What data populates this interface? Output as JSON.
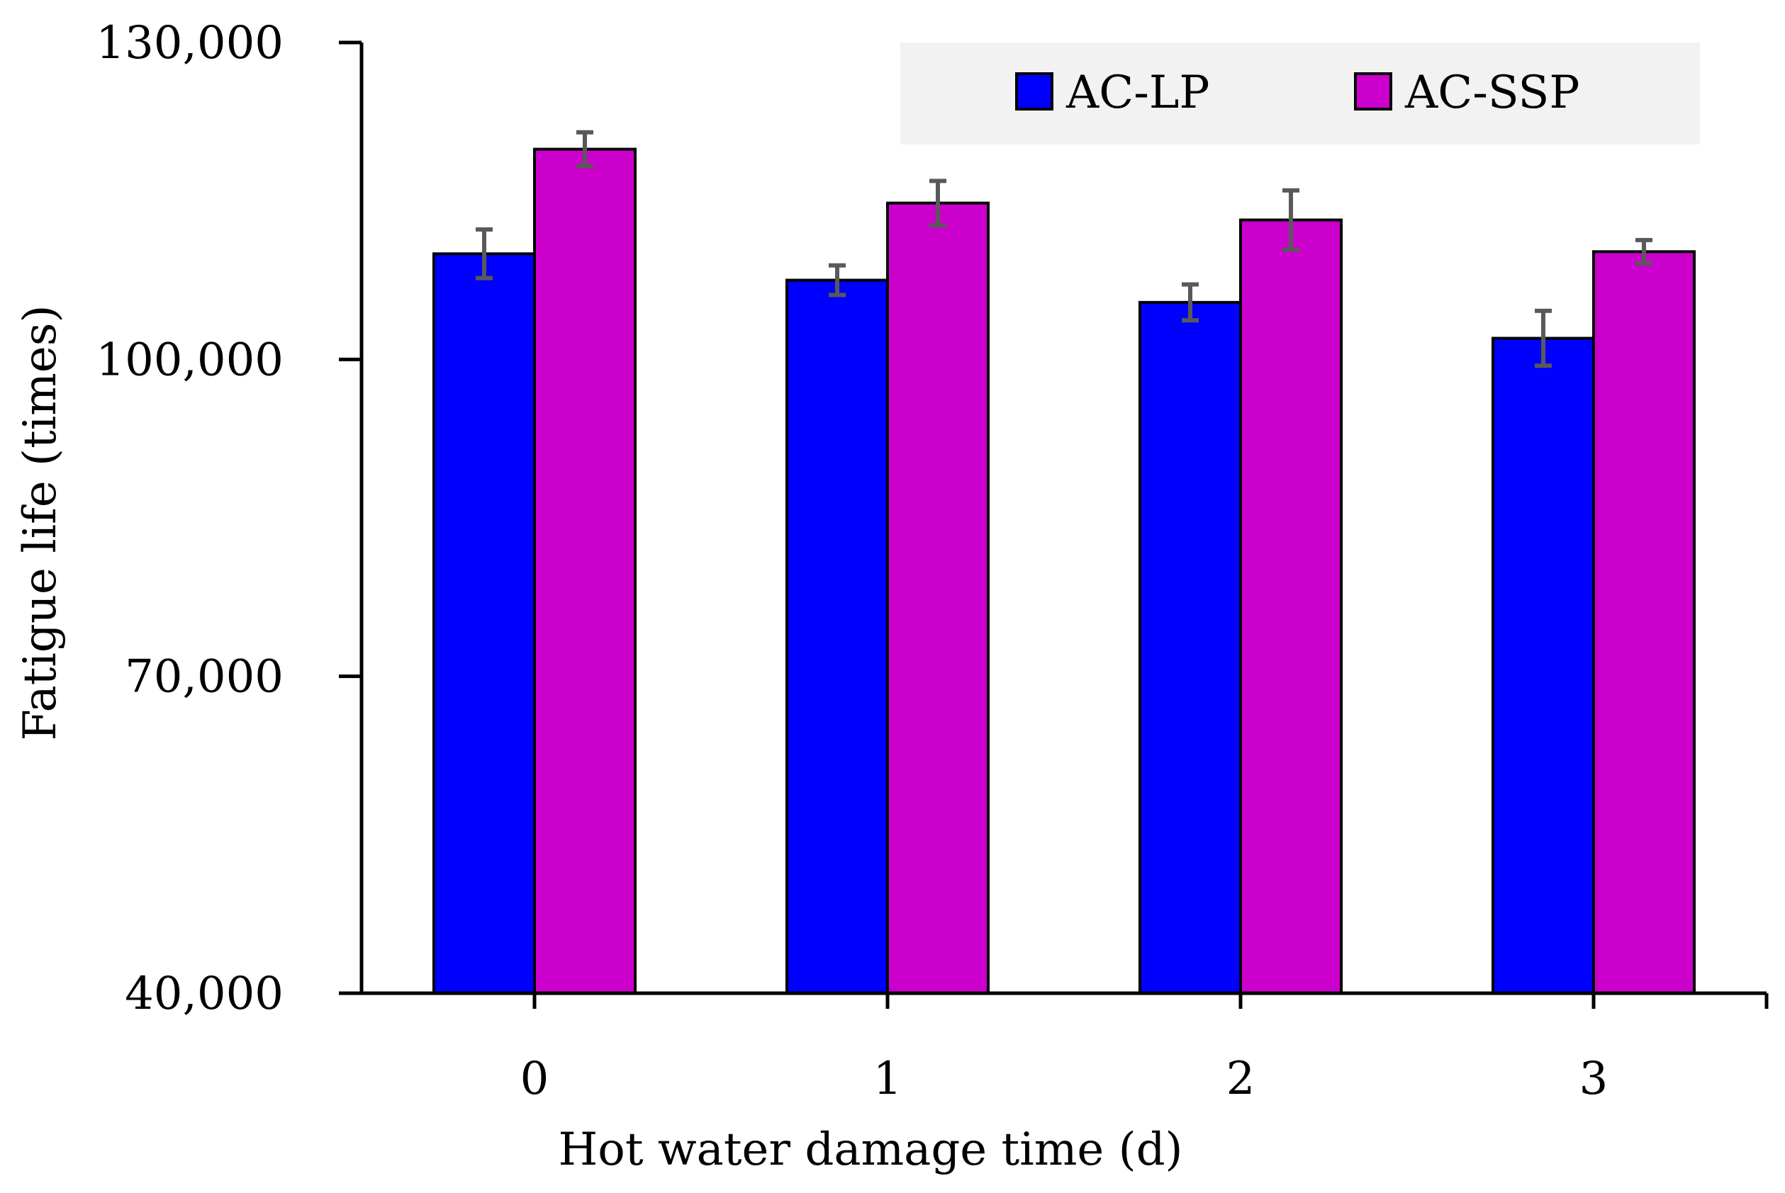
{
  "chart_data": {
    "type": "bar",
    "title": "",
    "xlabel": "Hot water damage time (d)",
    "ylabel": "Fatigue life (times)",
    "categories": [
      "0",
      "1",
      "2",
      "3"
    ],
    "ylim": [
      40000,
      130000
    ],
    "yticks": [
      40000,
      70000,
      100000,
      130000
    ],
    "ytick_labels": [
      "40,000",
      "70,000",
      "100,000",
      "130,000"
    ],
    "grid": false,
    "legend_position": "top-right",
    "series": [
      {
        "name": "AC-LP",
        "color": "#0000ff",
        "values": [
          110000,
          107500,
          105400,
          102000
        ],
        "errors": [
          2300,
          1400,
          1700,
          2600
        ]
      },
      {
        "name": "AC-SSP",
        "color": "#cc00cc",
        "values": [
          119900,
          114800,
          113200,
          110200
        ],
        "errors": [
          1600,
          2100,
          2800,
          1100
        ]
      }
    ],
    "error_bar_color": "#595959"
  }
}
